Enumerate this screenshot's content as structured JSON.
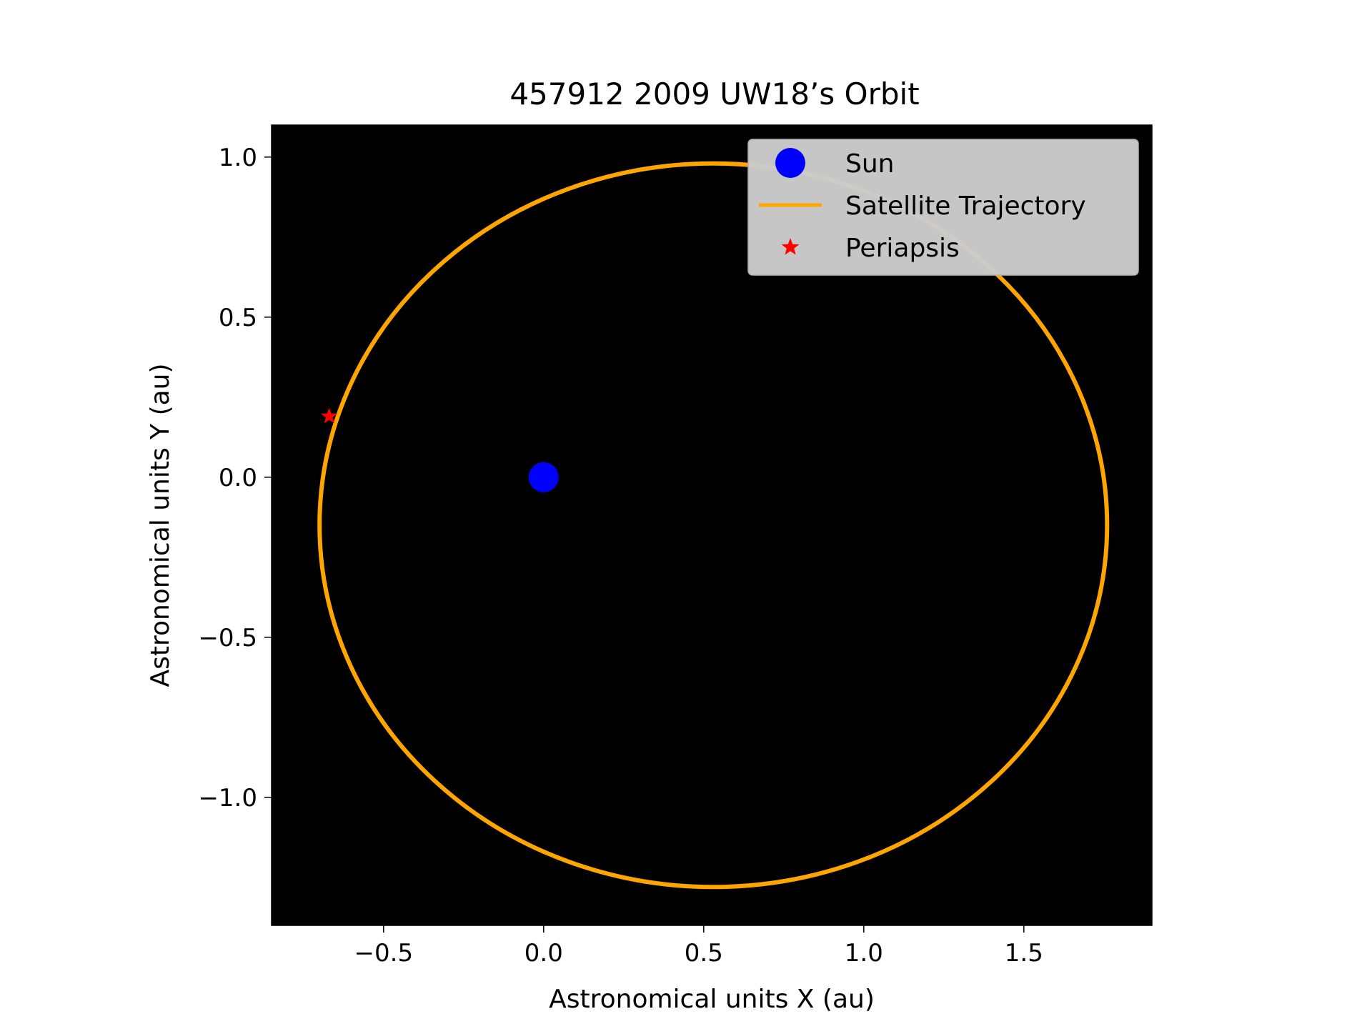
{
  "chart_data": {
    "type": "scatter",
    "title": "457912 2009 UW18’s Orbit",
    "xlabel": "Astronomical units X (au)",
    "ylabel": "Astronomical units Y (au)",
    "xlim": [
      -0.85,
      1.9
    ],
    "ylim": [
      -1.4,
      1.1
    ],
    "xticks": [
      {
        "value": -0.5,
        "label": "−0.5"
      },
      {
        "value": 0.0,
        "label": "0.0"
      },
      {
        "value": 0.5,
        "label": "0.5"
      },
      {
        "value": 1.0,
        "label": "1.0"
      },
      {
        "value": 1.5,
        "label": "1.5"
      }
    ],
    "yticks": [
      {
        "value": 1.0,
        "label": "1.0"
      },
      {
        "value": 0.5,
        "label": "0.5"
      },
      {
        "value": 0.0,
        "label": "0.0"
      },
      {
        "value": -0.5,
        "label": "−0.5"
      },
      {
        "value": -1.0,
        "label": "−1.0"
      }
    ],
    "grid": false,
    "background": "#000000",
    "legend_position": "top-right",
    "series": [
      {
        "name": "Sun",
        "marker": "circle",
        "color": "#0000ff",
        "x": [
          0.0
        ],
        "y": [
          0.0
        ]
      },
      {
        "name": "Satellite Trajectory",
        "marker": "line",
        "color": "#ffa500",
        "orbit": {
          "center_x": 0.53,
          "center_y": -0.15,
          "semi_axis_x": 1.23,
          "semi_axis_y": 1.13
        }
      },
      {
        "name": "Periapsis",
        "marker": "star",
        "color": "#ff0000",
        "x": [
          -0.67
        ],
        "y": [
          0.19
        ]
      }
    ]
  }
}
